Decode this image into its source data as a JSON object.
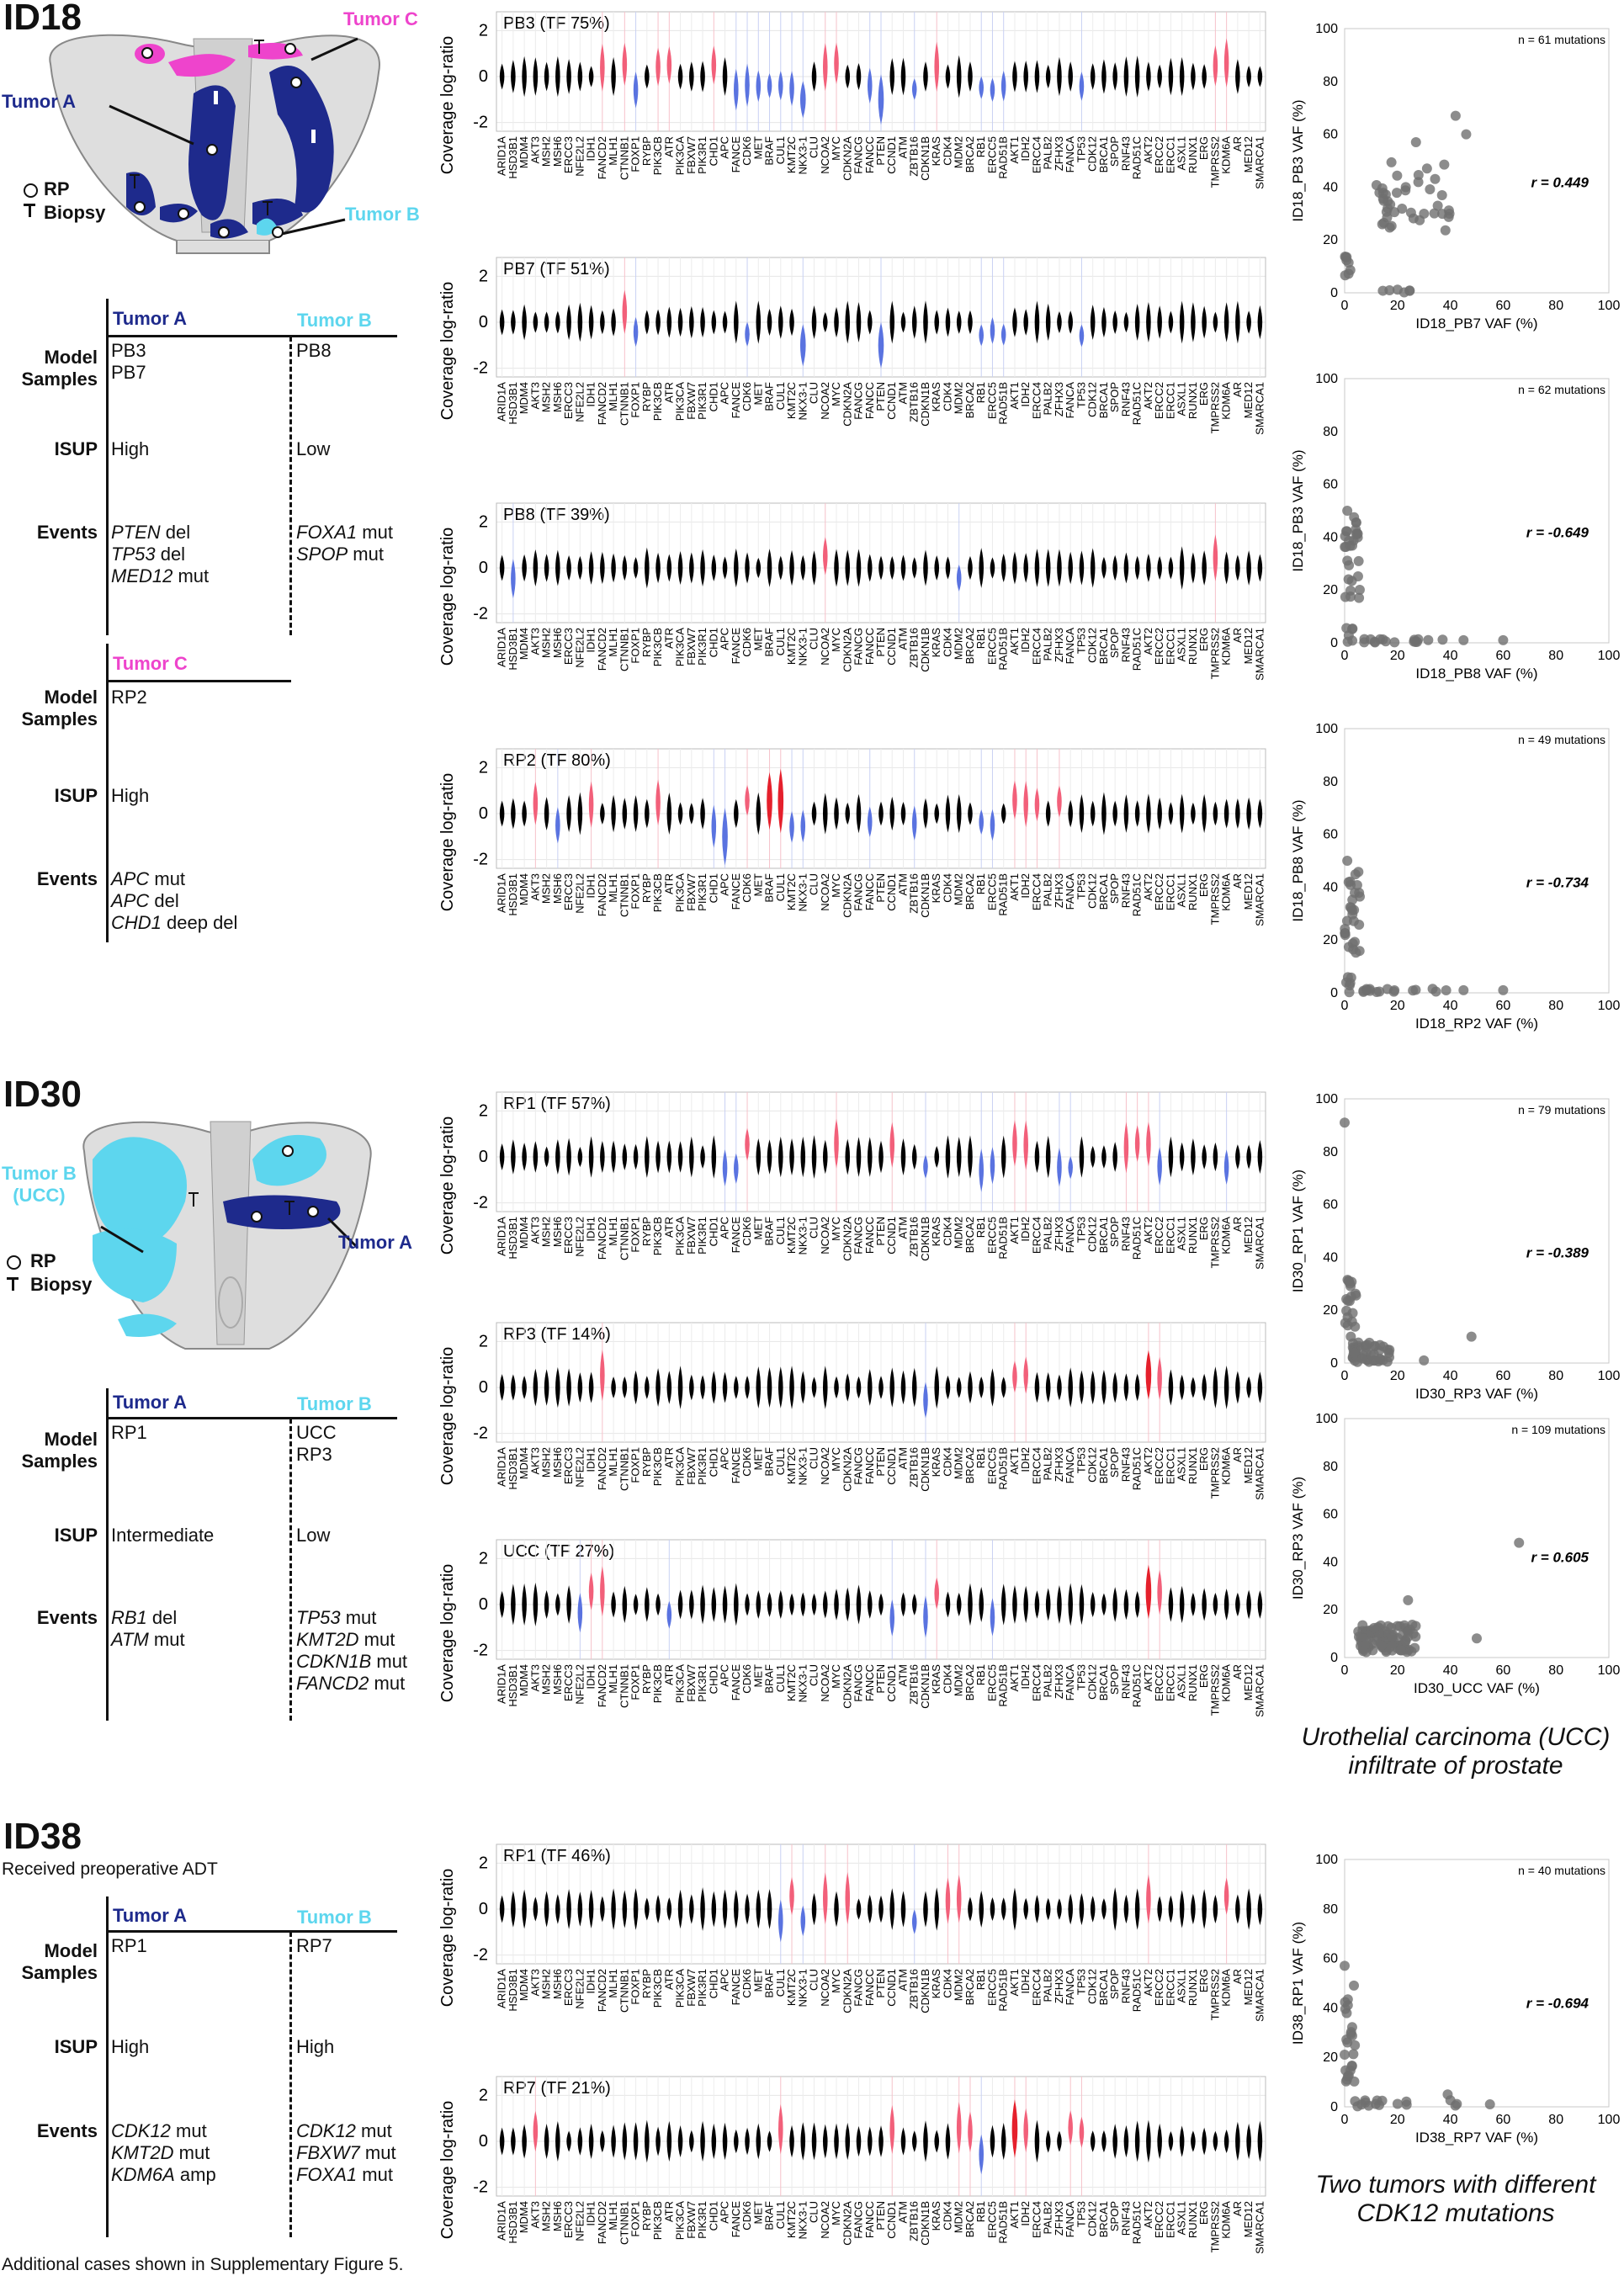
{
  "colors": {
    "tumorA": "#1e2a8c",
    "tumorB": "#5dd6ee",
    "tumorC": "#ee44cc",
    "gain": "#f2607a",
    "loss": "#5a73e0",
    "neutral": "#000000",
    "point": "#6f6f6f"
  },
  "common": {
    "y_axis_label": "Coverage log-ratio",
    "genes": [
      "ARID1A",
      "HSD3B1",
      "MDM4",
      "AKT3",
      "MSH2",
      "MSH6",
      "ERCC3",
      "NFE2L2",
      "IDH1",
      "FANCD2",
      "MLH1",
      "CTNNB1",
      "FOXP1",
      "RYBP",
      "PIK3CB",
      "ATR",
      "PIK3CA",
      "FBXW7",
      "PIK3R1",
      "CHD1",
      "APC",
      "FANCE",
      "CDK6",
      "MET",
      "BRAF",
      "CUL1",
      "KMT2C",
      "NKX3-1",
      "CLU",
      "NCOA2",
      "MYC",
      "CDKN2A",
      "FANCG",
      "FANCC",
      "PTEN",
      "CCND1",
      "ATM",
      "ZBTB16",
      "CDKN1B",
      "KRAS",
      "CDK4",
      "MDM2",
      "BRCA2",
      "RB1",
      "ERCC5",
      "RAD51B",
      "AKT1",
      "IDH2",
      "ERCC4",
      "PALB2",
      "ZFHX3",
      "FANCA",
      "TP53",
      "CDK12",
      "BRCA1",
      "SPOP",
      "RNF43",
      "RAD51C",
      "AKT2",
      "ERCC2",
      "ERCC1",
      "ASXL1",
      "RUNX1",
      "ERG",
      "TMPRSS2",
      "KDM6A",
      "AR",
      "MED12",
      "SMARCA1"
    ],
    "y_ticks": [
      "2",
      "0",
      "-2"
    ],
    "scatter_ticks": [
      "0",
      "20",
      "40",
      "60",
      "80",
      "100"
    ]
  },
  "legend": {
    "rp": "RP",
    "biopsy": "Biopsy"
  },
  "cases": [
    {
      "id": "ID18",
      "anatomy_labels": {
        "a": "Tumor A",
        "b": "Tumor B",
        "c": "Tumor C"
      },
      "table1": {
        "tumor_a": "Tumor A",
        "tumor_b": "Tumor B",
        "row_labels": [
          "Model\nSamples",
          "ISUP",
          "Events"
        ],
        "a_samples": [
          "PB3",
          "PB7"
        ],
        "b_samples": [
          "PB8"
        ],
        "a_isup": "High",
        "b_isup": "Low",
        "a_events": [
          {
            "gene": "PTEN",
            "type": "del"
          },
          {
            "gene": "TP53",
            "type": "del"
          },
          {
            "gene": "MED12",
            "type": "mut"
          }
        ],
        "b_events": [
          {
            "gene": "FOXA1",
            "type": "mut"
          },
          {
            "gene": "SPOP",
            "type": "mut"
          }
        ]
      },
      "table2": {
        "tumor_c": "Tumor C",
        "c_samples": [
          "RP2"
        ],
        "c_isup": "High",
        "c_events": [
          {
            "gene": "APC",
            "type": "mut"
          },
          {
            "gene": "APC",
            "type": "del"
          },
          {
            "gene": "CHD1",
            "type": "deep del"
          }
        ]
      },
      "violins": [
        {
          "label": "PB3 (TF 75%)",
          "gains": [
            "FANCD2",
            "CTNNB1",
            "PIK3CB",
            "ATR",
            "CHD1",
            "NCOA2",
            "MYC",
            "KRAS",
            "TMPRSS2",
            "KDM6A"
          ],
          "losses": [
            "FOXP1",
            "FANCE",
            "CDK6",
            "MET",
            "BRAF",
            "CUL1",
            "KMT2C",
            "NKX3-1",
            "FANCC",
            "PTEN",
            "ZBTB16",
            "RB1",
            "ERCC5",
            "RAD51B",
            "TP53"
          ],
          "deep": [
            "NKX3-1",
            "PTEN"
          ]
        },
        {
          "label": "PB7 (TF 51%)",
          "gains": [
            "CTNNB1"
          ],
          "losses": [
            "FOXP1",
            "CDK6",
            "NKX3-1",
            "PTEN",
            "RB1",
            "ERCC5",
            "RAD51B",
            "TP53"
          ],
          "deep": [
            "NKX3-1",
            "PTEN"
          ]
        },
        {
          "label": "PB8 (TF 39%)",
          "gains": [
            "NCOA2",
            "TMPRSS2"
          ],
          "losses": [
            "HSD3B1",
            "MDM2"
          ],
          "deep": []
        },
        {
          "label": "RP2 (TF 80%)",
          "gains": [
            "AKT3",
            "IDH1",
            "PIK3CB",
            "CDK6",
            "BRAF",
            "CUL1",
            "AKT1",
            "IDH2",
            "ERCC4",
            "ZFHX3"
          ],
          "losses": [
            "MSH6",
            "APC",
            "CHD1",
            "KMT2C",
            "NKX3-1",
            "FANCC",
            "ZBTB16",
            "RB1",
            "ERCC5"
          ],
          "deep": [
            "APC",
            "BRAF",
            "CUL1"
          ]
        }
      ],
      "scatters": [
        {
          "n_label": "n = 61 mutations",
          "xlabel": "ID18_PB7 VAF (%)",
          "ylabel": "ID18_PB3 VAF (%)",
          "r_label": "r = 0.449",
          "mode": "corr"
        },
        {
          "n_label": "n = 62 mutations",
          "xlabel": "ID18_PB8 VAF (%)",
          "ylabel": "ID18_PB3 VAF (%)",
          "r_label": "r = -0.649",
          "mode": "anti"
        },
        {
          "n_label": "n = 49 mutations",
          "xlabel": "ID18_RP2 VAF (%)",
          "ylabel": "ID18_PB8 VAF (%)",
          "r_label": "r = -0.734",
          "mode": "anti"
        }
      ]
    },
    {
      "id": "ID30",
      "anatomy_labels": {
        "a": "Tumor A",
        "b": "Tumor B\n(UCC)"
      },
      "table1": {
        "tumor_a": "Tumor A",
        "tumor_b": "Tumor B",
        "a_samples": [
          "RP1"
        ],
        "b_samples": [
          "UCC",
          "RP3"
        ],
        "a_isup": "Intermediate",
        "b_isup": "Low",
        "a_events": [
          {
            "gene": "RB1",
            "type": "del"
          },
          {
            "gene": "ATM",
            "type": "mut"
          }
        ],
        "b_events": [
          {
            "gene": "TP53",
            "type": "mut"
          },
          {
            "gene": "KMT2D",
            "type": "mut"
          },
          {
            "gene": "CDKN1B",
            "type": "mut"
          },
          {
            "gene": "FANCD2",
            "type": "mut"
          }
        ]
      },
      "violins": [
        {
          "label": "RP1 (TF 57%)",
          "gains": [
            "CDK6",
            "MYC",
            "CCND1",
            "AKT1",
            "IDH2",
            "RNF43",
            "RAD51C",
            "AKT2"
          ],
          "losses": [
            "APC",
            "FANCE",
            "CDKN1B",
            "RB1",
            "ERCC5",
            "ZFHX3",
            "FANCA",
            "ERCC2",
            "KDM6A"
          ],
          "deep": []
        },
        {
          "label": "RP3 (TF 14%)",
          "gains": [
            "FANCD2",
            "AKT1",
            "IDH2",
            "AKT2",
            "ERCC2"
          ],
          "losses": [
            "CDKN1B"
          ],
          "deep": [
            "AKT2"
          ]
        },
        {
          "label": "UCC (TF 27%)",
          "gains": [
            "IDH1",
            "FANCD2",
            "KRAS",
            "AKT2",
            "ERCC2"
          ],
          "losses": [
            "NFE2L2",
            "ATR",
            "CCND1",
            "CDKN1B",
            "ERCC5"
          ],
          "deep": [
            "AKT2"
          ]
        }
      ],
      "scatters": [
        {
          "n_label": "n = 79 mutations",
          "xlabel": "ID30_RP3 VAF (%)",
          "ylabel": "ID30_RP1 VAF (%)",
          "r_label": "r = -0.389",
          "mode": "anti2"
        },
        {
          "n_label": "n = 109 mutations",
          "xlabel": "ID30_UCC VAF (%)",
          "ylabel": "ID30_RP3 VAF (%)",
          "r_label": "r = 0.605",
          "mode": "cluster"
        }
      ],
      "caption": "Urothelial carcinoma (UCC)\ninfiltrate of prostate"
    },
    {
      "id": "ID38",
      "subtitle": "Received preoperative ADT",
      "table1": {
        "tumor_a": "Tumor A",
        "tumor_b": "Tumor B",
        "a_samples": [
          "RP1"
        ],
        "b_samples": [
          "RP7"
        ],
        "a_isup": "High",
        "b_isup": "High",
        "a_events": [
          {
            "gene": "CDK12",
            "type": "mut"
          },
          {
            "gene": "KMT2D",
            "type": "mut"
          },
          {
            "gene": "KDM6A",
            "type": "amp"
          }
        ],
        "b_events": [
          {
            "gene": "CDK12",
            "type": "mut"
          },
          {
            "gene": "FBXW7",
            "type": "mut"
          },
          {
            "gene": "FOXA1",
            "type": "mut"
          }
        ]
      },
      "violins": [
        {
          "label": "RP1 (TF 46%)",
          "gains": [
            "KMT2C",
            "NCOA2",
            "CDKN2A",
            "MDM2",
            "CDK4",
            "AKT2",
            "KDM6A"
          ],
          "losses": [
            "CUL1",
            "NKX3-1",
            "ZBTB16"
          ],
          "deep": []
        },
        {
          "label": "RP7 (TF 21%)",
          "gains": [
            "AKT3",
            "CUL1",
            "CCND1",
            "MDM2",
            "BRCA2",
            "AKT1",
            "IDH2",
            "FANCA",
            "TP53"
          ],
          "losses": [
            "RB1"
          ],
          "deep": [
            "AKT1"
          ]
        }
      ],
      "scatters": [
        {
          "n_label": "n = 40 mutations",
          "xlabel": "ID38_RP7 VAF (%)",
          "ylabel": "ID38_RP1 VAF (%)",
          "r_label": "r = -0.694",
          "mode": "anti3"
        }
      ],
      "caption": "Two tumors with different\nCDK12 mutations"
    }
  ],
  "footer": "Additional cases shown in Supplementary Figure 5."
}
